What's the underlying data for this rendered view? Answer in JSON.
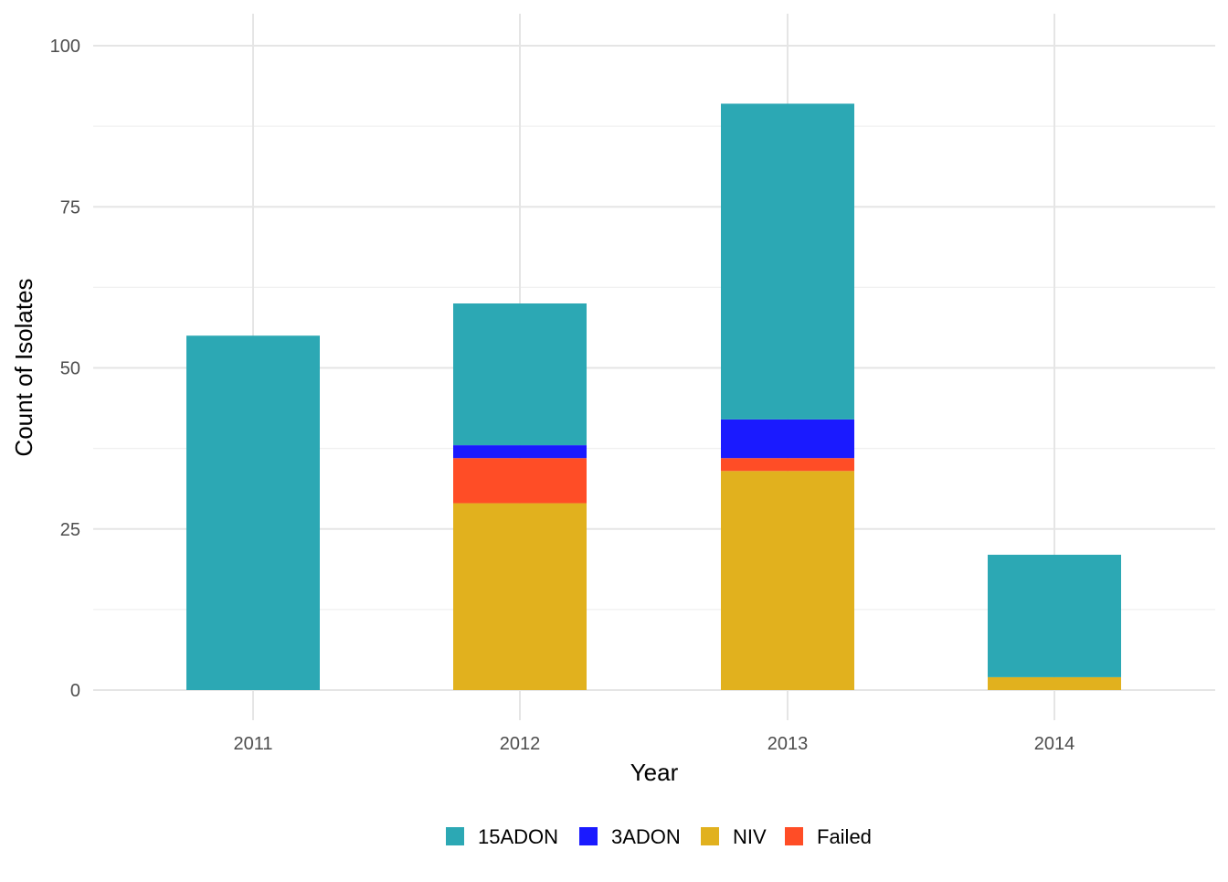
{
  "chart_data": {
    "type": "bar",
    "stacked": true,
    "title": "",
    "xlabel": "Year",
    "ylabel": "Count of Isolates",
    "categories": [
      "2011",
      "2012",
      "2013",
      "2014"
    ],
    "ylim": [
      0,
      100
    ],
    "yticks": [
      0,
      25,
      50,
      75,
      100
    ],
    "grid": true,
    "legend_position": "bottom",
    "series": [
      {
        "name": "NIV",
        "color": "#E1B11E",
        "values": [
          0,
          29,
          34,
          2
        ]
      },
      {
        "name": "Failed",
        "color": "#FF4D26",
        "values": [
          0,
          7,
          2,
          0
        ]
      },
      {
        "name": "3ADON",
        "color": "#1A1AFF",
        "values": [
          0,
          2,
          6,
          0
        ]
      },
      {
        "name": "15ADON",
        "color": "#2CA8B4",
        "values": [
          55,
          22,
          49,
          19
        ]
      }
    ],
    "legend_order": [
      "15ADON",
      "3ADON",
      "NIV",
      "Failed"
    ]
  }
}
